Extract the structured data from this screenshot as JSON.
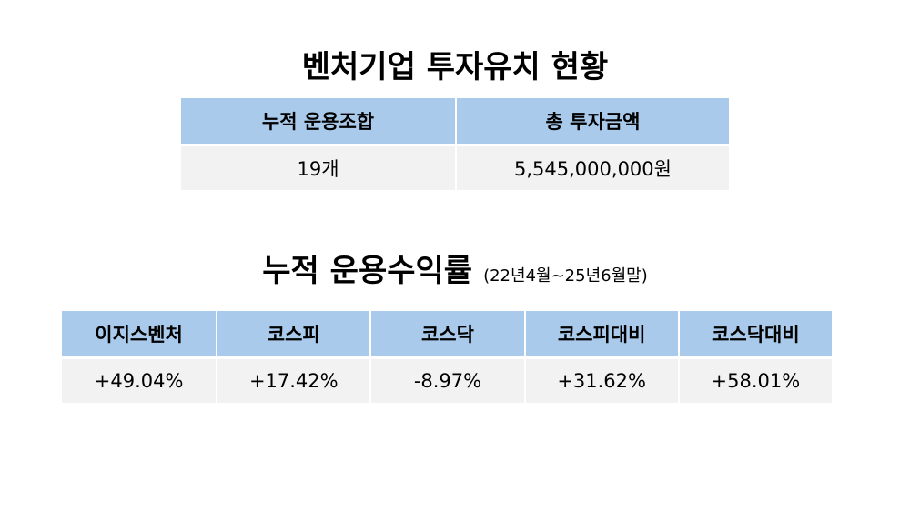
{
  "section1": {
    "title": "벤처기업 투자유치 현황",
    "headers": [
      "누적 운용조합",
      "총 투자금액"
    ],
    "values": [
      "19개",
      "5,545,000,000원"
    ]
  },
  "section2": {
    "title": "누적 운용수익률",
    "subtitle": "(22년4월~25년6월말)",
    "headers": [
      "이지스벤처",
      "코스피",
      "코스닥",
      "코스피대비",
      "코스닥대비"
    ],
    "values": [
      "+49.04%",
      "+17.42%",
      "-8.97%",
      "+31.62%",
      "+58.01%"
    ]
  },
  "colors": {
    "header_bg": "#a9caea",
    "cell_bg": "#f2f2f2"
  }
}
